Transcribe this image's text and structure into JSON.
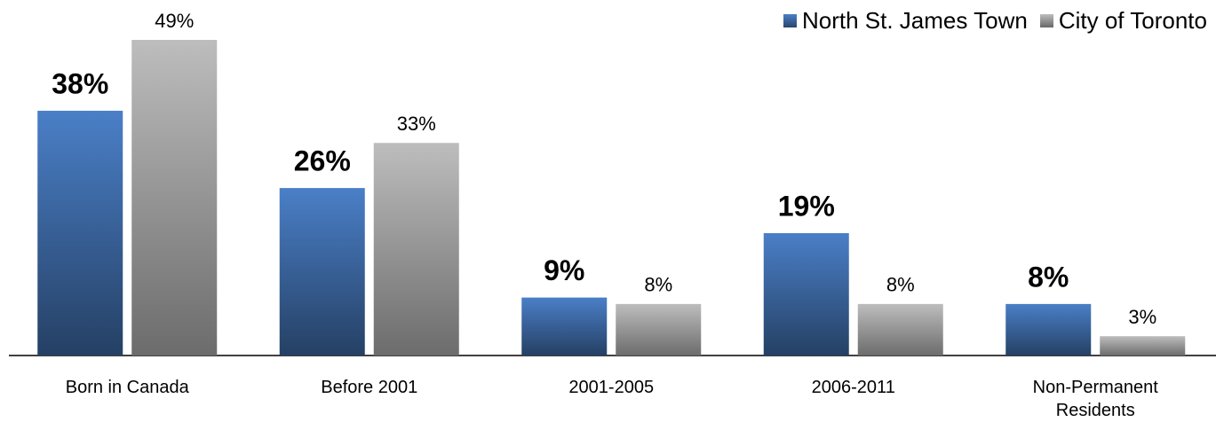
{
  "chart_data": {
    "type": "bar",
    "categories": [
      "Born in Canada",
      "Before 2001",
      "2001-2005",
      "2006-2011",
      "Non-Permanent Residents"
    ],
    "series": [
      {
        "name": "North St. James Town",
        "color": "#4a7fc7",
        "values": [
          38,
          26,
          9,
          19,
          8
        ],
        "value_labels": [
          "38%",
          "26%",
          "9%",
          "19%",
          "8%"
        ]
      },
      {
        "name": "City of Toronto",
        "color": "#bdbdbd",
        "values": [
          49,
          33,
          8,
          8,
          3
        ],
        "value_labels": [
          "49%",
          "33%",
          "8%",
          "8%",
          "3%"
        ]
      }
    ],
    "legend": "top-right"
  }
}
